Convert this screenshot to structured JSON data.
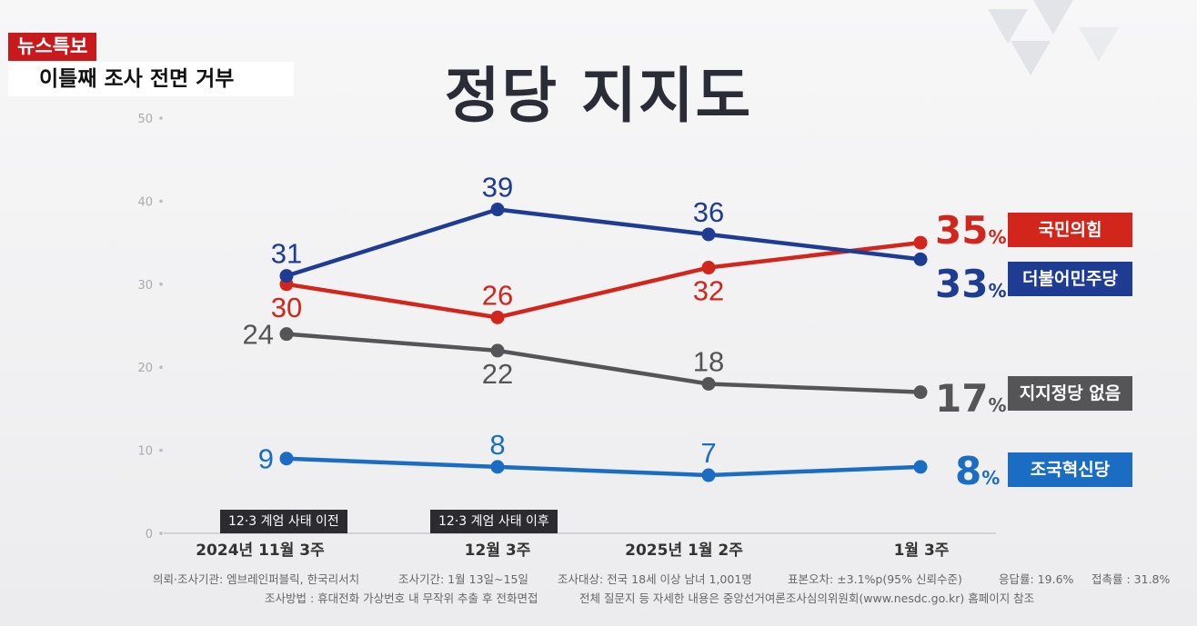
{
  "header": {
    "news_tag": "뉴스특보",
    "subtitle": "이틀째 조사 전면 거부"
  },
  "chart_data": {
    "type": "line",
    "title": "정당 지지도",
    "categories": [
      "2024년 11월 3주",
      "12월 3주",
      "2025년 1월 2주",
      "1월 3주"
    ],
    "ylim": [
      0,
      50
    ],
    "yticks": [
      0,
      10,
      20,
      30,
      40,
      50
    ],
    "grid": false,
    "series": [
      {
        "name": "국민의힘",
        "color": "#d2261d",
        "values": [
          30,
          26,
          32,
          35
        ],
        "labels": [
          "30",
          "26",
          "32",
          "35"
        ],
        "label_pos": [
          "below",
          "above",
          "below",
          "end"
        ]
      },
      {
        "name": "더불어민주당",
        "color": "#1f3c93",
        "values": [
          31,
          39,
          36,
          33
        ],
        "labels": [
          "31",
          "39",
          "36",
          "33"
        ],
        "label_pos": [
          "above",
          "above",
          "above",
          "end"
        ]
      },
      {
        "name": "지지정당 없음",
        "color": "#555558",
        "values": [
          24,
          22,
          18,
          17
        ],
        "labels": [
          "24",
          "22",
          "18",
          "17"
        ],
        "label_pos": [
          "left",
          "below",
          "above",
          "end"
        ]
      },
      {
        "name": "조국혁신당",
        "color": "#1a6dc2",
        "values": [
          9,
          8,
          7,
          8
        ],
        "labels": [
          "9",
          "8",
          "7",
          "8"
        ],
        "label_pos": [
          "left",
          "above",
          "above",
          "end"
        ]
      }
    ],
    "unit": "%",
    "phase_labels": [
      "12·3 계엄 사태 이전",
      "12·3 계엄 사태 이후"
    ]
  },
  "footer": {
    "line1": [
      "의뢰·조사기관: 엠브레인퍼블릭, 한국리서치",
      "조사기간: 1월 13일~15일",
      "조사대상: 전국 18세 이상 남녀 1,001명",
      "표본오차: ±3.1%p(95% 신뢰수준)",
      "응답률: 19.6%",
      "접촉률 : 31.8%"
    ],
    "line2": [
      "조사방법 : 휴대전화 가상번호 내 무작위 추출 후 전화면접",
      "전체 질문지 등 자세한 내용은 중앙선거여론조사심의위원회(www.nesdc.go.kr) 홈페이지 참조"
    ]
  }
}
